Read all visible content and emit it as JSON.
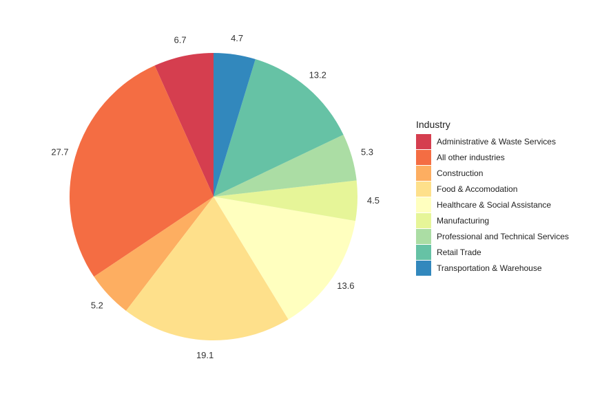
{
  "chart_data": {
    "type": "pie",
    "title": "",
    "legend": {
      "title": "Industry",
      "position": "right"
    },
    "slices": [
      {
        "label": "Administrative & Waste Services",
        "value": 6.7,
        "color": "#D53E4F"
      },
      {
        "label": "All other industries",
        "value": 27.7,
        "color": "#F46D43"
      },
      {
        "label": "Construction",
        "value": 5.2,
        "color": "#FDAE61"
      },
      {
        "label": "Food & Accomodation",
        "value": 19.1,
        "color": "#FEE08B"
      },
      {
        "label": "Healthcare & Social Assistance",
        "value": 13.6,
        "color": "#FFFFBF"
      },
      {
        "label": "Manufacturing",
        "value": 4.5,
        "color": "#E6F598"
      },
      {
        "label": "Professional and Technical Services",
        "value": 5.3,
        "color": "#ABDDA4"
      },
      {
        "label": "Retail Trade",
        "value": 13.2,
        "color": "#66C2A5"
      },
      {
        "label": "Transportation & Warehouse",
        "value": 4.7,
        "color": "#3288BD"
      }
    ],
    "ordering": "counter-clockwise from 12 o'clock"
  }
}
